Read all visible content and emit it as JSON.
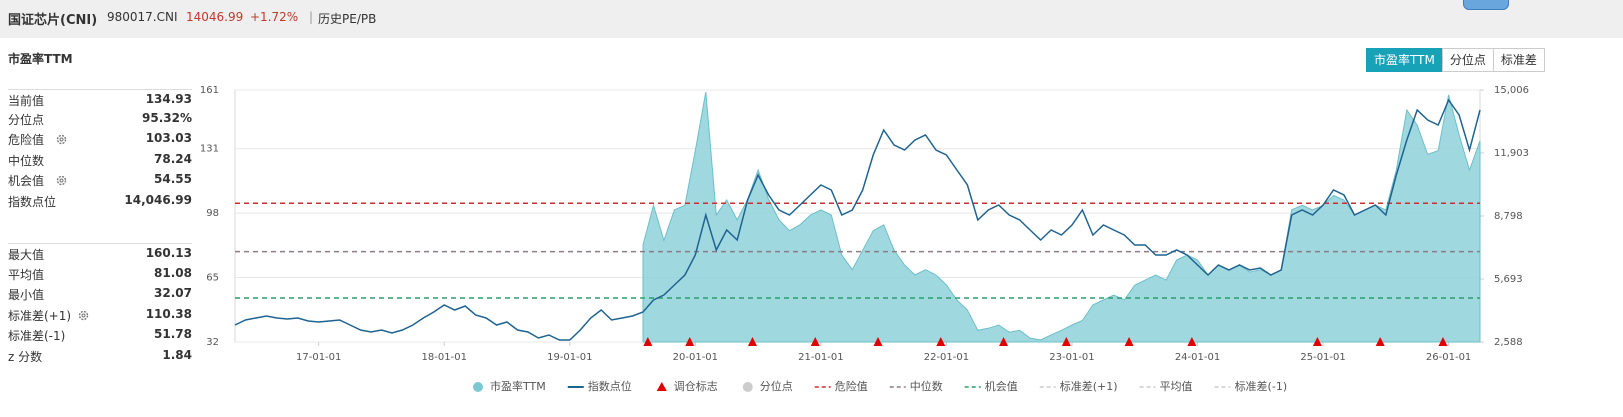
{
  "header": {
    "name": "国证芯片(CNI)",
    "code": "980017.CNI",
    "price": "14046.99",
    "change": "+1.72%",
    "link": "历史PE/PB"
  },
  "panel": {
    "title": "市盈率TTM",
    "tabs": [
      "市盈率TTM",
      "分位点",
      "标准差"
    ]
  },
  "stats": {
    "top": [
      {
        "label": "当前值",
        "value": "134.93"
      },
      {
        "label": "分位点",
        "value": "95.32%"
      },
      {
        "label": "危险值",
        "value": "103.03"
      },
      {
        "label": "中位数",
        "value": "78.24"
      },
      {
        "label": "机会值",
        "value": "54.55"
      },
      {
        "label": "指数点位",
        "value": "14,046.99"
      }
    ],
    "bottom": [
      {
        "label": "最大值",
        "value": "160.13"
      },
      {
        "label": "平均值",
        "value": "81.08"
      },
      {
        "label": "最小值",
        "value": "32.07"
      },
      {
        "label": "标准差(+1)",
        "value": "110.38"
      },
      {
        "label": "标准差(-1)",
        "value": "51.78"
      },
      {
        "label": "z 分数",
        "value": "1.84"
      }
    ]
  },
  "chart_data": {
    "type": "line",
    "x": [
      "16-05-01",
      "16-06-01",
      "16-07-01",
      "16-08-01",
      "16-09-01",
      "16-10-01",
      "16-11-01",
      "16-12-01",
      "17-01-01",
      "17-02-01",
      "17-03-01",
      "17-04-01",
      "17-05-01",
      "17-06-01",
      "17-07-01",
      "17-08-01",
      "17-09-01",
      "17-10-01",
      "17-11-01",
      "17-12-01",
      "18-01-01",
      "18-02-01",
      "18-03-01",
      "18-04-01",
      "18-05-01",
      "18-06-01",
      "18-07-01",
      "18-08-01",
      "18-09-01",
      "18-10-01",
      "18-11-01",
      "18-12-01",
      "19-01-01",
      "19-02-01",
      "19-03-01",
      "19-04-01",
      "19-05-01",
      "19-06-01",
      "19-07-01",
      "19-08-01",
      "19-09-01",
      "19-10-01",
      "19-11-01",
      "19-12-01",
      "20-01-01",
      "20-02-01",
      "20-03-01",
      "20-04-01",
      "20-05-01",
      "20-06-01",
      "20-07-01",
      "20-08-01",
      "20-09-01",
      "20-10-01",
      "20-11-01",
      "20-12-01",
      "21-01-01",
      "21-02-01",
      "21-03-01",
      "21-04-01",
      "21-05-01",
      "21-06-01",
      "21-07-01",
      "21-08-01",
      "21-09-01",
      "21-10-01",
      "21-11-01",
      "21-12-01",
      "22-01-01",
      "22-02-01",
      "22-03-01",
      "22-04-01",
      "22-05-01",
      "22-06-01",
      "22-07-01",
      "22-08-01",
      "22-09-01",
      "22-10-01",
      "22-11-01",
      "22-12-01",
      "23-01-01",
      "23-02-01",
      "23-03-01",
      "23-04-01",
      "23-05-01",
      "23-06-01",
      "23-07-01",
      "23-08-01",
      "23-09-01",
      "23-10-01",
      "23-11-01",
      "23-12-01",
      "24-01-01",
      "24-02-01",
      "24-03-01",
      "24-04-01",
      "24-05-01",
      "24-06-01",
      "24-07-01",
      "24-08-01",
      "24-09-01",
      "24-10-01",
      "24-11-01",
      "24-12-01",
      "25-01-01",
      "25-02-01",
      "25-03-01",
      "25-04-01",
      "25-05-01",
      "25-06-01",
      "25-07-01",
      "25-08-01",
      "25-09-01",
      "25-10-01",
      "25-11-01",
      "25-12-01",
      "26-01-01",
      "26-02-01",
      "26-03-01",
      "26-04-01"
    ],
    "xlim": [
      "16-05-01",
      "26-04-01"
    ],
    "xticks": [
      "17-01-01",
      "18-01-01",
      "19-01-01",
      "20-01-01",
      "21-01-01",
      "22-01-01",
      "23-01-01",
      "24-01-01",
      "25-01-01",
      "26-01-01"
    ],
    "ylim": [
      32,
      161
    ],
    "yticks": [
      32,
      65,
      98,
      131,
      161
    ],
    "y2lim": [
      2588,
      15006
    ],
    "y2ticks": [
      {
        "value": 2588,
        "label": "2,588"
      },
      {
        "value": 5693,
        "label": "5,693"
      },
      {
        "value": 8798,
        "label": "8,798"
      },
      {
        "value": 11903,
        "label": "11,903"
      },
      {
        "value": 15006,
        "label": "15,006"
      }
    ],
    "grid": true,
    "series": [
      {
        "name": "市盈率TTM",
        "type": "area",
        "color": "#8fd1d9",
        "values": [
          null,
          null,
          null,
          null,
          null,
          null,
          null,
          null,
          null,
          null,
          null,
          null,
          null,
          null,
          null,
          null,
          null,
          null,
          null,
          null,
          null,
          null,
          null,
          null,
          null,
          null,
          null,
          null,
          null,
          null,
          null,
          null,
          null,
          null,
          null,
          null,
          null,
          null,
          null,
          81.7,
          102,
          84,
          99.6,
          102,
          130,
          160,
          97,
          104.7,
          94.5,
          105,
          120,
          105,
          94.5,
          89,
          92,
          97,
          99.6,
          97,
          76.5,
          69,
          79,
          89,
          92,
          79,
          71.4,
          66.3,
          69,
          66.3,
          61.2,
          53.5,
          48.4,
          38,
          39,
          40.7,
          37,
          38,
          34,
          33,
          35.6,
          38,
          40.7,
          43,
          51,
          53.5,
          56,
          53.5,
          61,
          63.7,
          66.3,
          63.7,
          74,
          76.5,
          74,
          66.3,
          71.4,
          69,
          71.4,
          67.8,
          69,
          66.3,
          69,
          99.6,
          102,
          99.6,
          102,
          107,
          104.7,
          97,
          99.6,
          102,
          99.6,
          120,
          150.8,
          143,
          128,
          130,
          158.5,
          138,
          120,
          135
        ]
      },
      {
        "name": "指数点位",
        "type": "line",
        "axis": "y2",
        "color": "#1f6391",
        "values": [
          3426,
          3672,
          3771,
          3869,
          3771,
          3722,
          3771,
          3623,
          3574,
          3623,
          3672,
          3426,
          3179,
          3081,
          3179,
          3032,
          3179,
          3426,
          3771,
          4066,
          4411,
          4165,
          4362,
          3919,
          3771,
          3426,
          3574,
          3179,
          3081,
          2785,
          2933,
          2687,
          2687,
          3179,
          3771,
          4165,
          3672,
          3771,
          3869,
          4066,
          4658,
          4904,
          5397,
          5890,
          6875,
          8847,
          7122,
          8107,
          7615,
          9586,
          10818,
          9832,
          9093,
          8847,
          9339,
          9832,
          10325,
          10079,
          8847,
          9093,
          10079,
          11803,
          13035,
          12296,
          12050,
          12543,
          12789,
          12050,
          11803,
          11064,
          10325,
          8600,
          9093,
          9339,
          8847,
          8600,
          8107,
          7615,
          8107,
          7861,
          8354,
          9093,
          7861,
          8354,
          8107,
          7861,
          7368,
          7368,
          6875,
          6875,
          7122,
          6875,
          6383,
          5890,
          6383,
          6136,
          6383,
          6136,
          6235,
          5890,
          6136,
          8847,
          9093,
          8847,
          9339,
          10079,
          9832,
          8847,
          9093,
          9339,
          8847,
          10818,
          12543,
          14021,
          13528,
          13282,
          14514,
          13775,
          12050,
          14021
        ]
      },
      {
        "name": "调仓标志",
        "type": "marker",
        "color": "#e00000",
        "x": [
          "19-08-15",
          "19-12-15",
          "20-06-15",
          "20-12-15",
          "21-06-15",
          "21-12-15",
          "22-06-15",
          "22-12-15",
          "23-06-15",
          "23-12-15",
          "24-12-15",
          "25-06-15",
          "25-12-15"
        ]
      },
      {
        "name": "分位点",
        "type": "area",
        "visible": false
      },
      {
        "name": "危险值",
        "type": "hline",
        "color": "#cf2e2e",
        "value": 103.03
      },
      {
        "name": "中位数",
        "type": "hline",
        "color": "#8c7b86",
        "value": 78.24
      },
      {
        "name": "机会值",
        "type": "hline",
        "color": "#2a9d6a",
        "value": 54.55
      },
      {
        "name": "标准差(+1)",
        "type": "hline",
        "visible": false
      },
      {
        "name": "平均值",
        "type": "hline",
        "visible": false
      },
      {
        "name": "标准差(-1)",
        "type": "hline",
        "visible": false
      }
    ]
  }
}
